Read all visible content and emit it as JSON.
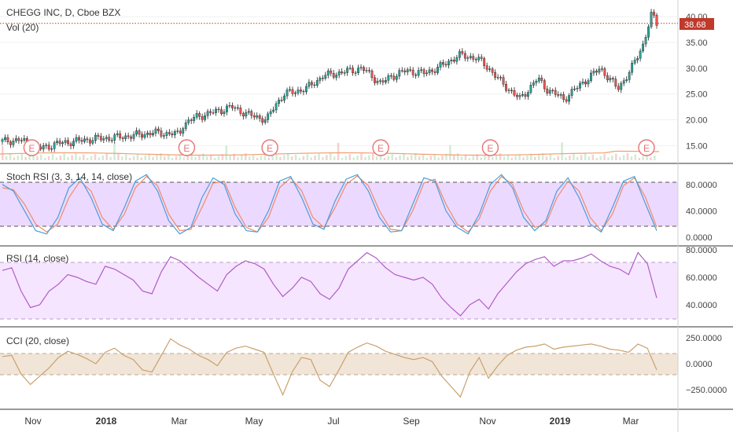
{
  "chart_data": [
    {
      "type": "candlestick",
      "title": "CHEGG INC, D, Cboe BZX",
      "sub_label": "Vol (20)",
      "last_price": "38.68",
      "yticks": [
        "40.00",
        "35.00",
        "30.00",
        "25.00",
        "20.00",
        "15.00"
      ],
      "ylim": [
        12,
        42
      ],
      "earnings_marker": "E",
      "earnings_x": [
        "2017-10-26",
        "2018-02-26",
        "2018-05-03",
        "2018-07-30",
        "2018-10-25",
        "2019-02-26"
      ],
      "x": [
        "2017-10-02",
        "2017-10-16",
        "2017-11-01",
        "2017-11-15",
        "2017-12-01",
        "2017-12-15",
        "2018-01-02",
        "2018-01-16",
        "2018-01-31",
        "2018-02-20",
        "2018-02-23",
        "2018-03-05",
        "2018-03-20",
        "2018-04-03",
        "2018-04-16",
        "2018-05-01",
        "2018-05-08",
        "2018-05-15",
        "2018-06-01",
        "2018-06-15",
        "2018-07-02",
        "2018-07-16",
        "2018-07-31",
        "2018-08-08",
        "2018-08-20",
        "2018-09-04",
        "2018-09-18",
        "2018-10-01",
        "2018-10-15",
        "2018-10-25",
        "2018-11-05",
        "2018-11-19",
        "2018-12-03",
        "2018-12-10",
        "2018-12-24",
        "2019-01-07",
        "2019-01-22",
        "2019-02-05",
        "2019-02-15",
        "2019-02-25",
        "2019-03-04",
        "2019-03-08"
      ],
      "close": [
        15.8,
        16.1,
        14.4,
        15.4,
        15.9,
        16.3,
        16.6,
        17.0,
        17.5,
        17.2,
        19.0,
        20.5,
        21.5,
        22.5,
        21.0,
        20.0,
        23.0,
        25.0,
        26.0,
        28.5,
        29.3,
        30.0,
        27.0,
        28.4,
        29.5,
        29.0,
        30.5,
        32.5,
        32.0,
        30.0,
        27.0,
        24.0,
        28.0,
        26.0,
        24.0,
        27.0,
        30.0,
        26.0,
        29.5,
        34.5,
        40.5,
        38.68
      ],
      "rsi_ticks": [
        "80.0000",
        "60.0000",
        "40.0000"
      ],
      "stoch_ticks": [
        "80.0000",
        "40.0000",
        "0.0000"
      ],
      "cci_ticks": [
        "250.0000",
        "0.0000",
        "−250.0000"
      ],
      "x_tick_labels": [
        "Nov",
        "2018",
        "Mar",
        "May",
        "Jul",
        "Sep",
        "Nov",
        "2019",
        "Mar"
      ]
    },
    {
      "type": "line",
      "title": "Stoch RSI (3, 3, 14, 14, close)",
      "ylim": [
        0,
        100
      ],
      "x": [
        0,
        1,
        2,
        3,
        4,
        5,
        6,
        7,
        8,
        9,
        10,
        11,
        12,
        13,
        14,
        15,
        16,
        17,
        18,
        19,
        20,
        21,
        22,
        23,
        24,
        25,
        26,
        27,
        28,
        29,
        30,
        31,
        32,
        33,
        34,
        35,
        36,
        37,
        38,
        39,
        40,
        41,
        42,
        43,
        44,
        45,
        46,
        47,
        48,
        49,
        50,
        51,
        52,
        53,
        54,
        55,
        56,
        57,
        58,
        59
      ],
      "k": [
        80,
        70,
        40,
        10,
        5,
        30,
        75,
        90,
        60,
        20,
        10,
        45,
        85,
        95,
        70,
        25,
        5,
        15,
        60,
        90,
        80,
        35,
        10,
        8,
        40,
        85,
        92,
        60,
        20,
        12,
        55,
        88,
        95,
        70,
        30,
        8,
        10,
        50,
        90,
        85,
        40,
        15,
        5,
        35,
        80,
        95,
        75,
        30,
        10,
        25,
        70,
        90,
        60,
        20,
        8,
        45,
        85,
        92,
        50,
        10
      ],
      "d": [
        75,
        72,
        50,
        20,
        8,
        20,
        60,
        85,
        70,
        30,
        12,
        35,
        75,
        92,
        78,
        35,
        10,
        12,
        45,
        82,
        85,
        45,
        15,
        8,
        30,
        75,
        90,
        70,
        30,
        15,
        45,
        80,
        93,
        78,
        40,
        12,
        10,
        40,
        82,
        88,
        50,
        20,
        8,
        28,
        70,
        92,
        80,
        40,
        15,
        20,
        60,
        85,
        70,
        30,
        10,
        35,
        78,
        90,
        60,
        15
      ]
    },
    {
      "type": "line",
      "title": "RSI (14, close)",
      "ylim": [
        20,
        85
      ],
      "values": [
        65,
        67,
        50,
        38,
        40,
        50,
        55,
        62,
        60,
        57,
        55,
        68,
        66,
        62,
        58,
        50,
        48,
        64,
        75,
        72,
        66,
        60,
        55,
        50,
        62,
        68,
        72,
        70,
        66,
        55,
        46,
        52,
        60,
        57,
        48,
        44,
        52,
        66,
        72,
        78,
        74,
        67,
        62,
        60,
        58,
        60,
        55,
        45,
        38,
        32,
        40,
        44,
        37,
        48,
        56,
        64,
        70,
        73,
        75,
        68,
        72,
        72,
        74,
        77,
        72,
        68,
        66,
        62,
        78,
        70,
        45
      ]
    },
    {
      "type": "line",
      "title": "CCI (20, close)",
      "ylim": [
        -400,
        330
      ],
      "values": [
        70,
        80,
        -100,
        -200,
        -120,
        -40,
        60,
        120,
        90,
        50,
        0,
        110,
        150,
        80,
        40,
        -60,
        -80,
        80,
        240,
        180,
        140,
        80,
        40,
        -20,
        110,
        150,
        170,
        140,
        110,
        -100,
        -300,
        -80,
        60,
        40,
        -160,
        -220,
        -60,
        110,
        160,
        200,
        170,
        120,
        90,
        60,
        40,
        60,
        20,
        -120,
        -220,
        -320,
        -80,
        60,
        -140,
        -20,
        80,
        130,
        160,
        170,
        190,
        140,
        160,
        170,
        180,
        190,
        170,
        140,
        130,
        110,
        190,
        150,
        -60
      ]
    }
  ]
}
